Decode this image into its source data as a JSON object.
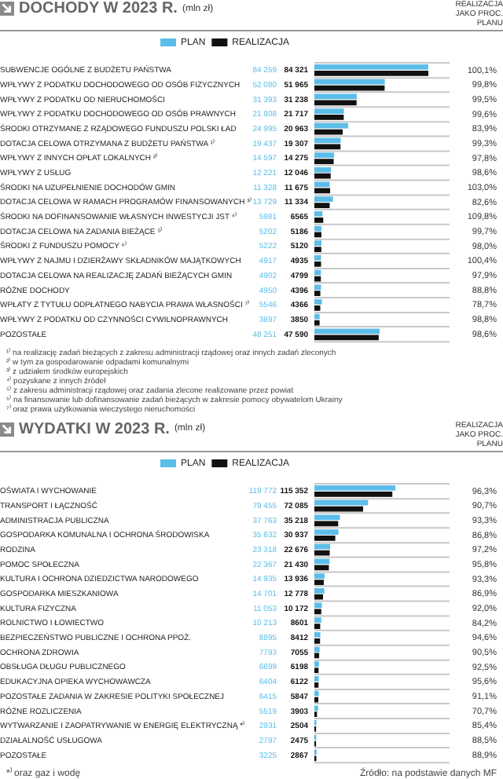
{
  "chart_data": [
    {
      "type": "bar",
      "orientation": "horizontal",
      "title": "DOCHODY W 2023 R.",
      "subtitle": "(mln zł)",
      "legend": "top",
      "grid": "y",
      "tick_labels": "y",
      "data_labels": true,
      "categories": [
        "SUBWENCJE OGÓLNE Z BUDŻETU PAŃSTWA",
        "WPŁYWY Z PODATKU DOCHODOWEGO OD OSÓB FIZYCZNYCH",
        "WPŁYWY Z PODATKU OD NIERUCHOMOŚCI",
        "WPŁYWY Z PODATKU DOCHODOWEGO OD OSÓB PRAWNYCH",
        "ŚRODKI OTRZYMANE Z RZĄDOWEGO FUNDUSZU POLSKI ŁAD",
        "DOTACJA CELOWA OTRZYMANA Z BUDŻETU PAŃSTWA ¹⁾",
        "WPŁYWY Z INNYCH OPŁAT LOKALNYCH ²⁾",
        "WPŁYWY Z USŁUG",
        "ŚRODKI NA UZUPEŁNIENIE DOCHODÓW GMIN",
        "DOTACJA CELOWA W RAMACH PROGRAMÓW FINANSOWANYCH ³⁾",
        "ŚRODKI NA DOFINANSOWANIE WŁASNYCH INWESTYCJI JST ⁴⁾",
        "DOTACJA CELOWA NA ZADANIA BIEŻĄCE ⁵⁾",
        "ŚRODKI Z FUNDUSZU POMOCY ⁶⁾",
        "WPŁYWY Z NAJMU I DZIERŻAWY SKŁADNIKÓW MAJĄTKOWYCH",
        "DOTACJA CELOWA NA REALIZACJĘ ZADAŃ BIEŻĄCYCH GMIN",
        "RÓŻNE DOCHODY",
        "WPŁATY Z TYTUŁU ODPŁATNEGO NABYCIA PRAWA WŁASNOŚCI ⁷⁾",
        "WPŁYWY Z PODATKU OD CZYNNOŚCI CYWILNOPRAWNYCH",
        "POZOSTAŁE"
      ],
      "series": [
        {
          "name": "PLAN",
          "color": "#5bbde8",
          "values": [
            84259,
            52080,
            31393,
            21808,
            24995,
            19437,
            14597,
            12221,
            11328,
            13729,
            5981,
            5202,
            5222,
            4917,
            4902,
            4950,
            5546,
            3897,
            48251
          ]
        },
        {
          "name": "REALIZACJA",
          "color": "#111111",
          "values": [
            84321,
            51965,
            31238,
            21717,
            20963,
            19307,
            14275,
            12046,
            11675,
            11334,
            6565,
            5186,
            5120,
            4935,
            4799,
            4396,
            4366,
            3850,
            47590
          ]
        }
      ],
      "annotations": [
        "REALIZACJA JAKO PROC. PLANU",
        "100,1%",
        "99,8%",
        "99,5%",
        "99,6%",
        "83,9%",
        "99,3%",
        "97,8%",
        "98,6%",
        "103,0%",
        "82,6%",
        "109,8%",
        "99,7%",
        "98,0%",
        "100,4%",
        "97,9%",
        "88,8%",
        "78,7%",
        "98,8%",
        "98,6%",
        "¹⁾ na realizację zadań bieżących z zakresu administracji rządowej oraz innych zadań zleconych",
        "²⁾ w tym za gospodarowanie odpadami komunalnymi",
        "³⁾ z udziałem środków europejskich",
        "⁴⁾ pozyskane z innych źródeł",
        "⁵⁾ z zakresu administracji rządowej oraz zadania zlecone realizowane przez powiat",
        "⁶⁾ na finansowanie lub dofinansowanie zadań bieżących w zakresie pomocy obywatelom Ukrainy",
        "⁷⁾ oraz prawa użytkowania wieczystego nieruchomości"
      ]
    },
    {
      "type": "bar",
      "orientation": "horizontal",
      "title": "WYDATKI W 2023 R.",
      "subtitle": "(mln zł)",
      "legend": "top",
      "grid": "y",
      "tick_labels": "y",
      "data_labels": true,
      "categories": [
        "OŚWIATA I WYCHOWANIE",
        "TRANSPORT I ŁĄCZNOŚĆ",
        "ADMINISTRACJA PUBLICZNA",
        "GOSPODARKA KOMUNALNA I OCHRONA ŚRODOWISKA",
        "RODZINA",
        "POMOC SPOŁECZNA",
        "KULTURA I OCHRONA DZIEDZICTWA NARODOWEGO",
        "GOSPODARKA MIESZKANIOWA",
        "KULTURA FIZYCZNA",
        "ROLNICTWO I ŁOWIECTWO",
        "BEZPIECZEŃSTWO PUBLICZNE I OCHRONA PPOŻ.",
        "OCHRONA ZDROWIA",
        "OBSŁUGA DŁUGU PUBLICZNEGO",
        "EDUKACYJNA OPIEKA WYCHOWAWCZA",
        "POZOSTAŁE ZADANIA W ZAKRESIE POLITYKI SPOŁECZNEJ",
        "RÓŻNE ROZLICZENIA",
        "WYTWARZANIE I ZAOPATRYWANIE W ENERGIĘ ELEKTRYCZNĄ *⁾",
        "DZIAŁALNOŚĆ USŁUGOWA",
        "POZOSTAŁE"
      ],
      "series": [
        {
          "name": "PLAN",
          "color": "#5bbde8",
          "values": [
            119772,
            79455,
            37763,
            35632,
            23318,
            22367,
            14935,
            14701,
            11053,
            10213,
            8895,
            7793,
            6699,
            6404,
            6415,
            5519,
            2931,
            2797,
            3225
          ]
        },
        {
          "name": "REALIZACJA",
          "color": "#111111",
          "values": [
            115352,
            72085,
            35218,
            30937,
            22676,
            21430,
            13936,
            12778,
            10172,
            8601,
            8412,
            7055,
            6198,
            6122,
            5847,
            3903,
            2504,
            2475,
            2867
          ]
        }
      ],
      "annotations": [
        "REALIZACJA JAKO PROC. PLANU",
        "96,3%",
        "90,7%",
        "93,3%",
        "86,8%",
        "97,2%",
        "95,8%",
        "93,3%",
        "86,9%",
        "92,0%",
        "84,2%",
        "94,6%",
        "90,5%",
        "92,5%",
        "95,6%",
        "91,1%",
        "70,7%",
        "85,4%",
        "88,5%",
        "88,9%",
        "*⁾ oraz gaz i wodę",
        "Źródło: na podstawie danych MF"
      ]
    }
  ]
}
